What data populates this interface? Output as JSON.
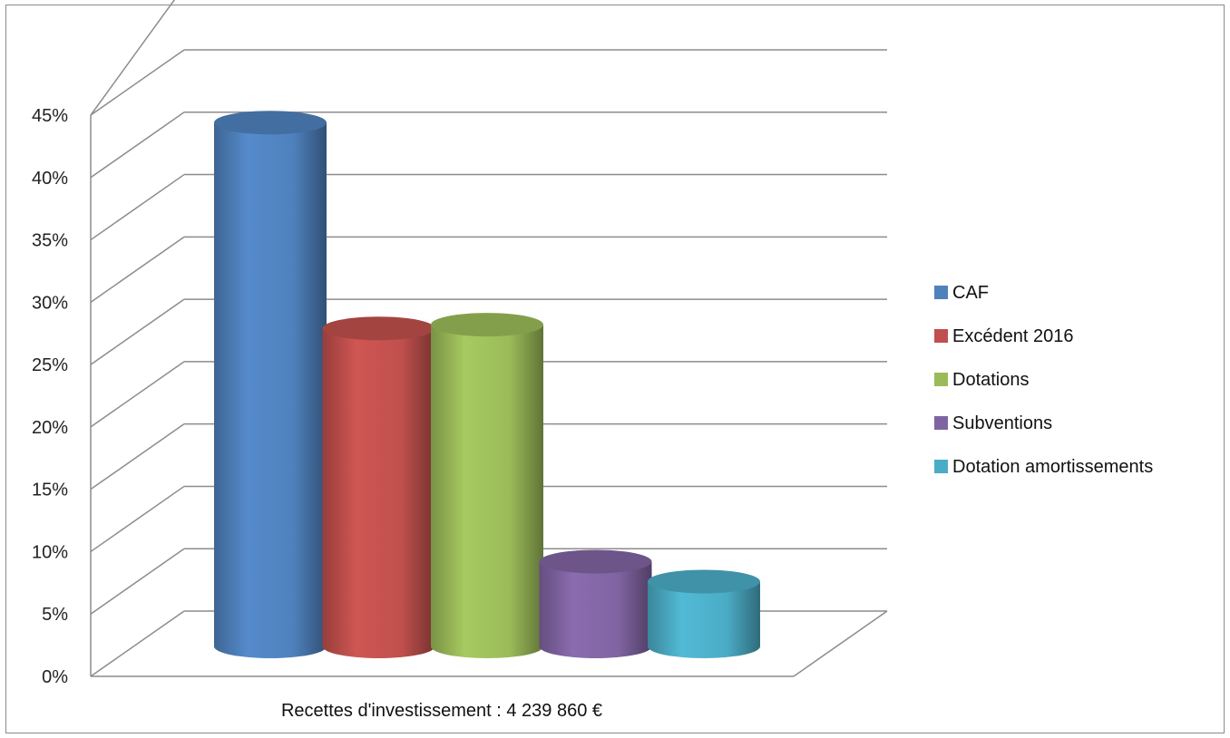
{
  "chart_data": {
    "type": "bar",
    "style": "3d-cylinder",
    "categories": [
      "Recettes d'investissement : 4 239 860 €"
    ],
    "series": [
      {
        "name": "CAF",
        "values": [
          42
        ],
        "color": "#4f81bd"
      },
      {
        "name": "Excédent 2016",
        "values": [
          25.5
        ],
        "color": "#c0504d"
      },
      {
        "name": "Dotations",
        "values": [
          25.8
        ],
        "color": "#9bbb59"
      },
      {
        "name": "Subventions",
        "values": [
          6.8
        ],
        "color": "#8064a2"
      },
      {
        "name": "Dotation amortissements",
        "values": [
          5.2
        ],
        "color": "#4bacc6"
      }
    ],
    "ylim": [
      0,
      45
    ],
    "yticks": [
      "0%",
      "5%",
      "10%",
      "15%",
      "20%",
      "25%",
      "30%",
      "35%",
      "40%",
      "45%"
    ],
    "grid": true,
    "legend_position": "right"
  }
}
